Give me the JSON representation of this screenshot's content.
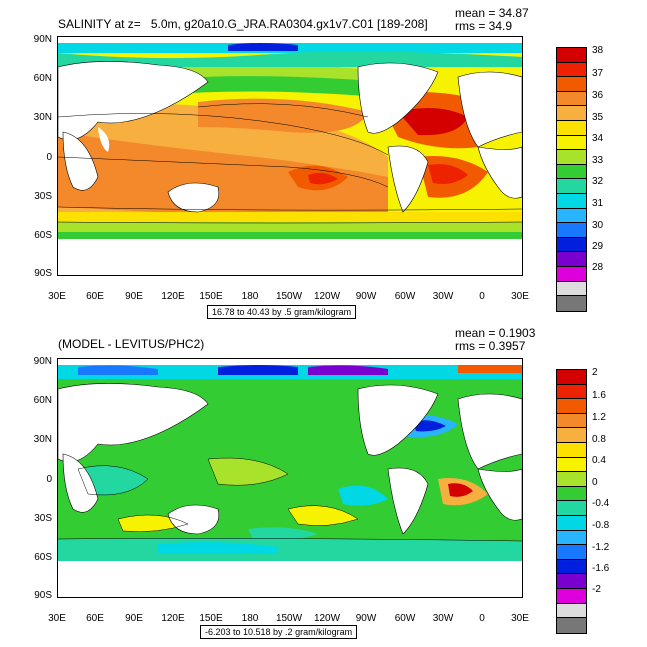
{
  "top_panel": {
    "title": "SALINITY at z=   5.0m, g20a10.G_JRA.RA0304.gx1v7.C01 [189-208]",
    "mean": "mean = 34.87",
    "rms": "rms = 34.9",
    "range_text": "16.78 to 40.43 by .5 gram/kilogram",
    "lat_ticks": [
      "90N",
      "60N",
      "30N",
      "0",
      "30S",
      "60S",
      "90S"
    ],
    "lon_ticks": [
      "30E",
      "60E",
      "90E",
      "120E",
      "150E",
      "180",
      "150W",
      "120W",
      "90W",
      "60W",
      "30W",
      "0",
      "30E"
    ],
    "colorbar_labels": [
      "38",
      "37",
      "36",
      "35",
      "34",
      "33",
      "32",
      "31",
      "30",
      "29",
      "28"
    ],
    "colorbar_colors": [
      "#d40000",
      "#ee2200",
      "#f25a00",
      "#f4892b",
      "#f7b040",
      "#fbe000",
      "#f6f200",
      "#a9e22a",
      "#33cc33",
      "#22d8a0",
      "#00d8e6",
      "#28b4ff",
      "#1878ff",
      "#0020dd",
      "#7a00d0",
      "#dd00dd",
      "#dddddd",
      "#777777"
    ]
  },
  "bottom_panel": {
    "title": "(MODEL - LEVITUS/PHC2)",
    "mean": "mean = 0.1903",
    "rms": "rms = 0.3957",
    "range_text": "-6.203 to 10.518 by .2 gram/kilogram",
    "lat_ticks": [
      "90N",
      "60N",
      "30N",
      "0",
      "30S",
      "60S",
      "90S"
    ],
    "lon_ticks": [
      "30E",
      "60E",
      "90E",
      "120E",
      "150E",
      "180",
      "150W",
      "120W",
      "90W",
      "60W",
      "30W",
      "0",
      "30E"
    ],
    "colorbar_labels": [
      "2",
      "1.6",
      "1.2",
      "0.8",
      "0.4",
      "0",
      "-0.4",
      "-0.8",
      "-1.2",
      "-1.6",
      "-2"
    ],
    "colorbar_colors": [
      "#d40000",
      "#ee2200",
      "#f25a00",
      "#f4892b",
      "#f7b040",
      "#fbe000",
      "#f6f200",
      "#a9e22a",
      "#33cc33",
      "#22d8a0",
      "#00d8e6",
      "#28b4ff",
      "#1878ff",
      "#0020dd",
      "#7a00d0",
      "#dd00dd",
      "#dddddd",
      "#777777"
    ]
  }
}
